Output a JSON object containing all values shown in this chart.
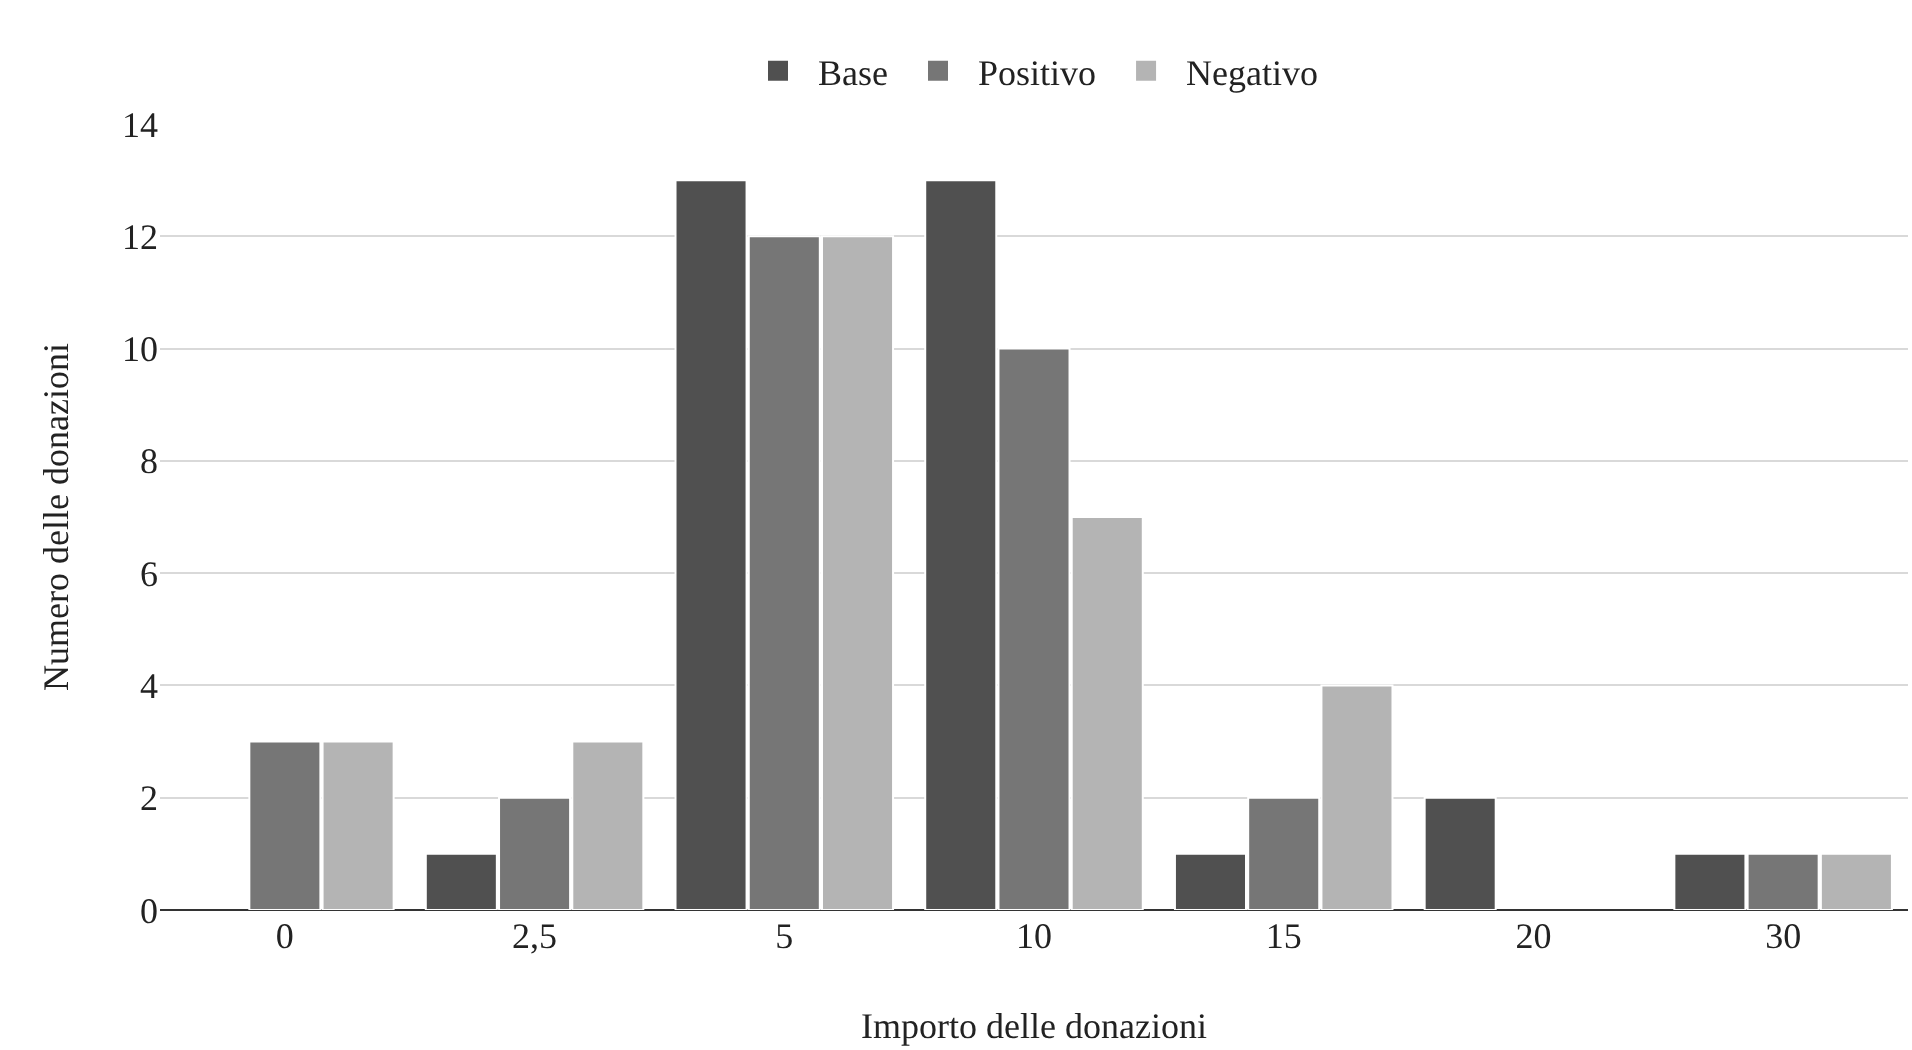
{
  "chart_data": {
    "type": "bar",
    "xlabel": "Importo delle donazioni",
    "ylabel": "Numero delle donazioni",
    "categories": [
      "0",
      "2,5",
      "5",
      "10",
      "15",
      "20",
      "30"
    ],
    "series": [
      {
        "name": "Base",
        "color": "#505050",
        "values": [
          0,
          1,
          13,
          13,
          1,
          2,
          1
        ]
      },
      {
        "name": "Positivo",
        "color": "#767676",
        "values": [
          3,
          2,
          12,
          10,
          2,
          0,
          1
        ]
      },
      {
        "name": "Negativo",
        "color": "#b4b4b4",
        "values": [
          3,
          3,
          12,
          7,
          4,
          0,
          1
        ]
      }
    ],
    "ylim": [
      0,
      14
    ],
    "yticks": [
      0,
      2,
      4,
      6,
      8,
      10,
      12,
      14
    ],
    "grid": "y",
    "legend": "top"
  }
}
